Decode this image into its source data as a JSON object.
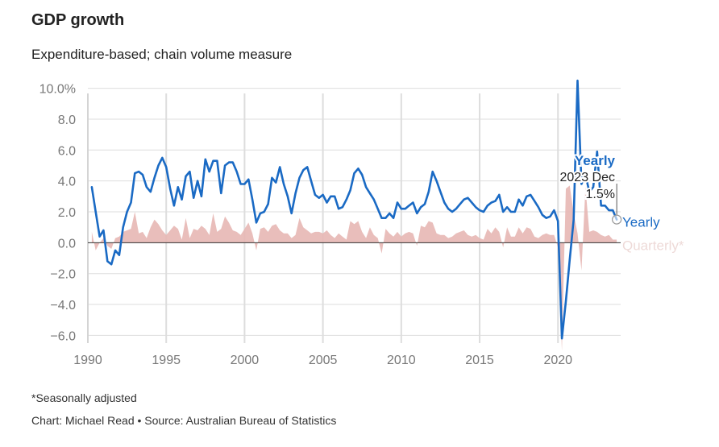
{
  "header": {
    "title": "GDP growth",
    "subtitle": "Expenditure-based; chain volume measure"
  },
  "footer": {
    "note": "*Seasonally adjusted",
    "credit": "Chart: Michael Read • Source: Australian Bureau of Statistics"
  },
  "tooltip": {
    "series": "Yearly",
    "period": "2023 Dec",
    "value": "1.5%"
  },
  "colors": {
    "yearly": "#1a6ac4",
    "quarterly": "#e7b7b4",
    "grid": "#dddddd",
    "zero": "#333333"
  },
  "chart_data": {
    "type": "line",
    "title": "GDP growth",
    "subtitle": "Expenditure-based; chain volume measure",
    "xlim": [
      1990,
      2024
    ],
    "ylim": [
      -6.5,
      10.5
    ],
    "y_ticks": [
      10,
      8,
      6,
      4,
      2,
      0,
      -2,
      -4,
      -6
    ],
    "y_tick_labels": [
      "10.0%",
      "8.0",
      "6.0",
      "4.0",
      "2.0",
      "0.0",
      "−2.0",
      "−4.0",
      "−6.0"
    ],
    "x_ticks": [
      1990,
      1995,
      2000,
      2005,
      2010,
      2015,
      2020
    ],
    "x_tick_labels": [
      "1990",
      "1995",
      "2000",
      "2005",
      "2010",
      "2015",
      "2020"
    ],
    "grid": true,
    "series": [
      {
        "name": "Yearly",
        "type": "line",
        "points": [
          [
            1990.25,
            3.6
          ],
          [
            1990.5,
            2.0
          ],
          [
            1990.75,
            0.4
          ],
          [
            1991.0,
            0.8
          ],
          [
            1991.25,
            -1.2
          ],
          [
            1991.5,
            -1.4
          ],
          [
            1991.75,
            -0.5
          ],
          [
            1992.0,
            -0.8
          ],
          [
            1992.25,
            1.0
          ],
          [
            1992.5,
            2.0
          ],
          [
            1992.75,
            2.6
          ],
          [
            1993.0,
            4.5
          ],
          [
            1993.25,
            4.6
          ],
          [
            1993.5,
            4.4
          ],
          [
            1993.75,
            3.6
          ],
          [
            1994.0,
            3.3
          ],
          [
            1994.25,
            4.2
          ],
          [
            1994.5,
            5.0
          ],
          [
            1994.75,
            5.5
          ],
          [
            1995.0,
            4.9
          ],
          [
            1995.25,
            3.5
          ],
          [
            1995.5,
            2.4
          ],
          [
            1995.75,
            3.6
          ],
          [
            1996.0,
            2.8
          ],
          [
            1996.25,
            4.3
          ],
          [
            1996.5,
            4.6
          ],
          [
            1996.75,
            2.9
          ],
          [
            1997.0,
            4.0
          ],
          [
            1997.25,
            3.0
          ],
          [
            1997.5,
            5.4
          ],
          [
            1997.75,
            4.6
          ],
          [
            1998.0,
            5.3
          ],
          [
            1998.25,
            5.3
          ],
          [
            1998.5,
            3.2
          ],
          [
            1998.75,
            5.0
          ],
          [
            1999.0,
            5.2
          ],
          [
            1999.25,
            5.2
          ],
          [
            1999.5,
            4.6
          ],
          [
            1999.75,
            3.8
          ],
          [
            2000.0,
            3.8
          ],
          [
            2000.25,
            4.1
          ],
          [
            2000.5,
            2.8
          ],
          [
            2000.75,
            1.3
          ],
          [
            2001.0,
            1.9
          ],
          [
            2001.25,
            2.0
          ],
          [
            2001.5,
            2.5
          ],
          [
            2001.75,
            4.2
          ],
          [
            2002.0,
            3.9
          ],
          [
            2002.25,
            4.9
          ],
          [
            2002.5,
            3.8
          ],
          [
            2002.75,
            3.0
          ],
          [
            2003.0,
            1.9
          ],
          [
            2003.25,
            3.2
          ],
          [
            2003.5,
            4.2
          ],
          [
            2003.75,
            4.7
          ],
          [
            2004.0,
            4.9
          ],
          [
            2004.25,
            4.0
          ],
          [
            2004.5,
            3.1
          ],
          [
            2004.75,
            2.9
          ],
          [
            2005.0,
            3.1
          ],
          [
            2005.25,
            2.6
          ],
          [
            2005.5,
            3.0
          ],
          [
            2005.75,
            3.0
          ],
          [
            2006.0,
            2.2
          ],
          [
            2006.25,
            2.3
          ],
          [
            2006.5,
            2.8
          ],
          [
            2006.75,
            3.4
          ],
          [
            2007.0,
            4.5
          ],
          [
            2007.25,
            4.8
          ],
          [
            2007.5,
            4.4
          ],
          [
            2007.75,
            3.6
          ],
          [
            2008.0,
            3.2
          ],
          [
            2008.25,
            2.8
          ],
          [
            2008.5,
            2.2
          ],
          [
            2008.75,
            1.6
          ],
          [
            2009.0,
            1.6
          ],
          [
            2009.25,
            1.9
          ],
          [
            2009.5,
            1.6
          ],
          [
            2009.75,
            2.6
          ],
          [
            2010.0,
            2.2
          ],
          [
            2010.25,
            2.2
          ],
          [
            2010.5,
            2.4
          ],
          [
            2010.75,
            2.6
          ],
          [
            2011.0,
            1.9
          ],
          [
            2011.25,
            2.3
          ],
          [
            2011.5,
            2.5
          ],
          [
            2011.75,
            3.3
          ],
          [
            2012.0,
            4.6
          ],
          [
            2012.25,
            4.0
          ],
          [
            2012.5,
            3.3
          ],
          [
            2012.75,
            2.6
          ],
          [
            2013.0,
            2.2
          ],
          [
            2013.25,
            2.0
          ],
          [
            2013.5,
            2.2
          ],
          [
            2013.75,
            2.5
          ],
          [
            2014.0,
            2.8
          ],
          [
            2014.25,
            2.9
          ],
          [
            2014.5,
            2.6
          ],
          [
            2014.75,
            2.3
          ],
          [
            2015.0,
            2.1
          ],
          [
            2015.25,
            2.0
          ],
          [
            2015.5,
            2.4
          ],
          [
            2015.75,
            2.6
          ],
          [
            2016.0,
            2.7
          ],
          [
            2016.25,
            3.1
          ],
          [
            2016.5,
            2.0
          ],
          [
            2016.75,
            2.3
          ],
          [
            2017.0,
            2.0
          ],
          [
            2017.25,
            2.0
          ],
          [
            2017.5,
            2.8
          ],
          [
            2017.75,
            2.4
          ],
          [
            2018.0,
            3.0
          ],
          [
            2018.25,
            3.1
          ],
          [
            2018.5,
            2.7
          ],
          [
            2018.75,
            2.3
          ],
          [
            2019.0,
            1.8
          ],
          [
            2019.25,
            1.6
          ],
          [
            2019.5,
            1.7
          ],
          [
            2019.75,
            2.1
          ],
          [
            2020.0,
            1.4
          ],
          [
            2020.25,
            -6.2
          ],
          [
            2020.5,
            -3.8
          ],
          [
            2020.75,
            -1.1
          ],
          [
            2021.0,
            1.5
          ],
          [
            2021.25,
            10.5
          ],
          [
            2021.5,
            3.8
          ],
          [
            2021.75,
            4.4
          ],
          [
            2022.0,
            3.3
          ],
          [
            2022.25,
            3.6
          ],
          [
            2022.5,
            5.9
          ],
          [
            2022.75,
            2.4
          ],
          [
            2023.0,
            2.4
          ],
          [
            2023.25,
            2.1
          ],
          [
            2023.5,
            2.1
          ],
          [
            2023.75,
            1.5
          ]
        ]
      },
      {
        "name": "Quarterly*",
        "type": "area",
        "points": [
          [
            1990.25,
            0.7
          ],
          [
            1990.5,
            -0.5
          ],
          [
            1990.75,
            0.0
          ],
          [
            1991.0,
            0.3
          ],
          [
            1991.25,
            -0.2
          ],
          [
            1991.5,
            -0.4
          ],
          [
            1991.75,
            0.3
          ],
          [
            1992.0,
            0.4
          ],
          [
            1992.25,
            0.7
          ],
          [
            1992.5,
            0.8
          ],
          [
            1992.75,
            0.9
          ],
          [
            1993.0,
            2.0
          ],
          [
            1993.25,
            0.6
          ],
          [
            1993.5,
            0.7
          ],
          [
            1993.75,
            0.3
          ],
          [
            1994.0,
            1.0
          ],
          [
            1994.25,
            1.5
          ],
          [
            1994.5,
            1.2
          ],
          [
            1994.75,
            0.8
          ],
          [
            1995.0,
            0.5
          ],
          [
            1995.25,
            0.8
          ],
          [
            1995.5,
            1.1
          ],
          [
            1995.75,
            0.9
          ],
          [
            1996.0,
            0.2
          ],
          [
            1996.25,
            1.6
          ],
          [
            1996.5,
            0.3
          ],
          [
            1996.75,
            0.9
          ],
          [
            1997.0,
            0.8
          ],
          [
            1997.25,
            1.1
          ],
          [
            1997.5,
            0.9
          ],
          [
            1997.75,
            0.5
          ],
          [
            1998.0,
            1.9
          ],
          [
            1998.25,
            0.7
          ],
          [
            1998.5,
            0.9
          ],
          [
            1998.75,
            1.7
          ],
          [
            1999.0,
            1.3
          ],
          [
            1999.25,
            0.8
          ],
          [
            1999.5,
            0.7
          ],
          [
            1999.75,
            0.5
          ],
          [
            2000.0,
            0.9
          ],
          [
            2000.25,
            1.3
          ],
          [
            2000.5,
            0.6
          ],
          [
            2000.75,
            -0.5
          ],
          [
            2001.0,
            0.9
          ],
          [
            2001.25,
            1.0
          ],
          [
            2001.5,
            0.7
          ],
          [
            2001.75,
            1.1
          ],
          [
            2002.0,
            1.2
          ],
          [
            2002.25,
            0.8
          ],
          [
            2002.5,
            0.6
          ],
          [
            2002.75,
            0.6
          ],
          [
            2003.0,
            0.3
          ],
          [
            2003.25,
            0.5
          ],
          [
            2003.5,
            1.6
          ],
          [
            2003.75,
            1.0
          ],
          [
            2004.0,
            0.8
          ],
          [
            2004.25,
            0.6
          ],
          [
            2004.5,
            0.7
          ],
          [
            2004.75,
            0.7
          ],
          [
            2005.0,
            0.6
          ],
          [
            2005.25,
            0.8
          ],
          [
            2005.5,
            0.5
          ],
          [
            2005.75,
            0.3
          ],
          [
            2006.0,
            0.6
          ],
          [
            2006.25,
            0.4
          ],
          [
            2006.5,
            0.2
          ],
          [
            2006.75,
            1.4
          ],
          [
            2007.0,
            1.2
          ],
          [
            2007.25,
            1.4
          ],
          [
            2007.5,
            0.7
          ],
          [
            2007.75,
            0.3
          ],
          [
            2008.0,
            1.0
          ],
          [
            2008.25,
            0.5
          ],
          [
            2008.5,
            0.3
          ],
          [
            2008.75,
            -0.7
          ],
          [
            2009.0,
            0.9
          ],
          [
            2009.25,
            0.6
          ],
          [
            2009.5,
            0.4
          ],
          [
            2009.75,
            0.7
          ],
          [
            2010.0,
            0.4
          ],
          [
            2010.25,
            0.6
          ],
          [
            2010.5,
            0.7
          ],
          [
            2010.75,
            0.6
          ],
          [
            2011.0,
            -0.2
          ],
          [
            2011.25,
            1.1
          ],
          [
            2011.5,
            1.0
          ],
          [
            2011.75,
            1.4
          ],
          [
            2012.0,
            1.3
          ],
          [
            2012.25,
            0.6
          ],
          [
            2012.5,
            0.5
          ],
          [
            2012.75,
            0.5
          ],
          [
            2013.0,
            0.3
          ],
          [
            2013.25,
            0.4
          ],
          [
            2013.5,
            0.6
          ],
          [
            2013.75,
            0.7
          ],
          [
            2014.0,
            0.8
          ],
          [
            2014.25,
            0.5
          ],
          [
            2014.5,
            0.4
          ],
          [
            2014.75,
            0.5
          ],
          [
            2015.0,
            0.3
          ],
          [
            2015.25,
            0.2
          ],
          [
            2015.5,
            0.9
          ],
          [
            2015.75,
            0.6
          ],
          [
            2016.0,
            1.0
          ],
          [
            2016.25,
            0.7
          ],
          [
            2016.5,
            -0.3
          ],
          [
            2016.75,
            1.0
          ],
          [
            2017.0,
            0.4
          ],
          [
            2017.25,
            0.4
          ],
          [
            2017.5,
            1.0
          ],
          [
            2017.75,
            0.6
          ],
          [
            2018.0,
            1.0
          ],
          [
            2018.25,
            0.9
          ],
          [
            2018.5,
            0.4
          ],
          [
            2018.75,
            0.3
          ],
          [
            2019.0,
            0.5
          ],
          [
            2019.25,
            0.6
          ],
          [
            2019.5,
            0.5
          ],
          [
            2019.75,
            0.5
          ],
          [
            2020.0,
            -0.3
          ],
          [
            2020.25,
            -7.0
          ],
          [
            2020.5,
            3.5
          ],
          [
            2020.75,
            3.7
          ],
          [
            2021.0,
            1.9
          ],
          [
            2021.25,
            0.6
          ],
          [
            2021.5,
            -1.8
          ],
          [
            2021.75,
            3.6
          ],
          [
            2022.0,
            0.7
          ],
          [
            2022.25,
            0.8
          ],
          [
            2022.5,
            0.7
          ],
          [
            2022.75,
            0.5
          ],
          [
            2023.0,
            0.4
          ],
          [
            2023.25,
            0.5
          ],
          [
            2023.5,
            0.2
          ],
          [
            2023.75,
            0.2
          ]
        ]
      }
    ],
    "labels": {
      "yearly_end": "Yearly",
      "quarterly_end": "Quarterly*"
    }
  }
}
